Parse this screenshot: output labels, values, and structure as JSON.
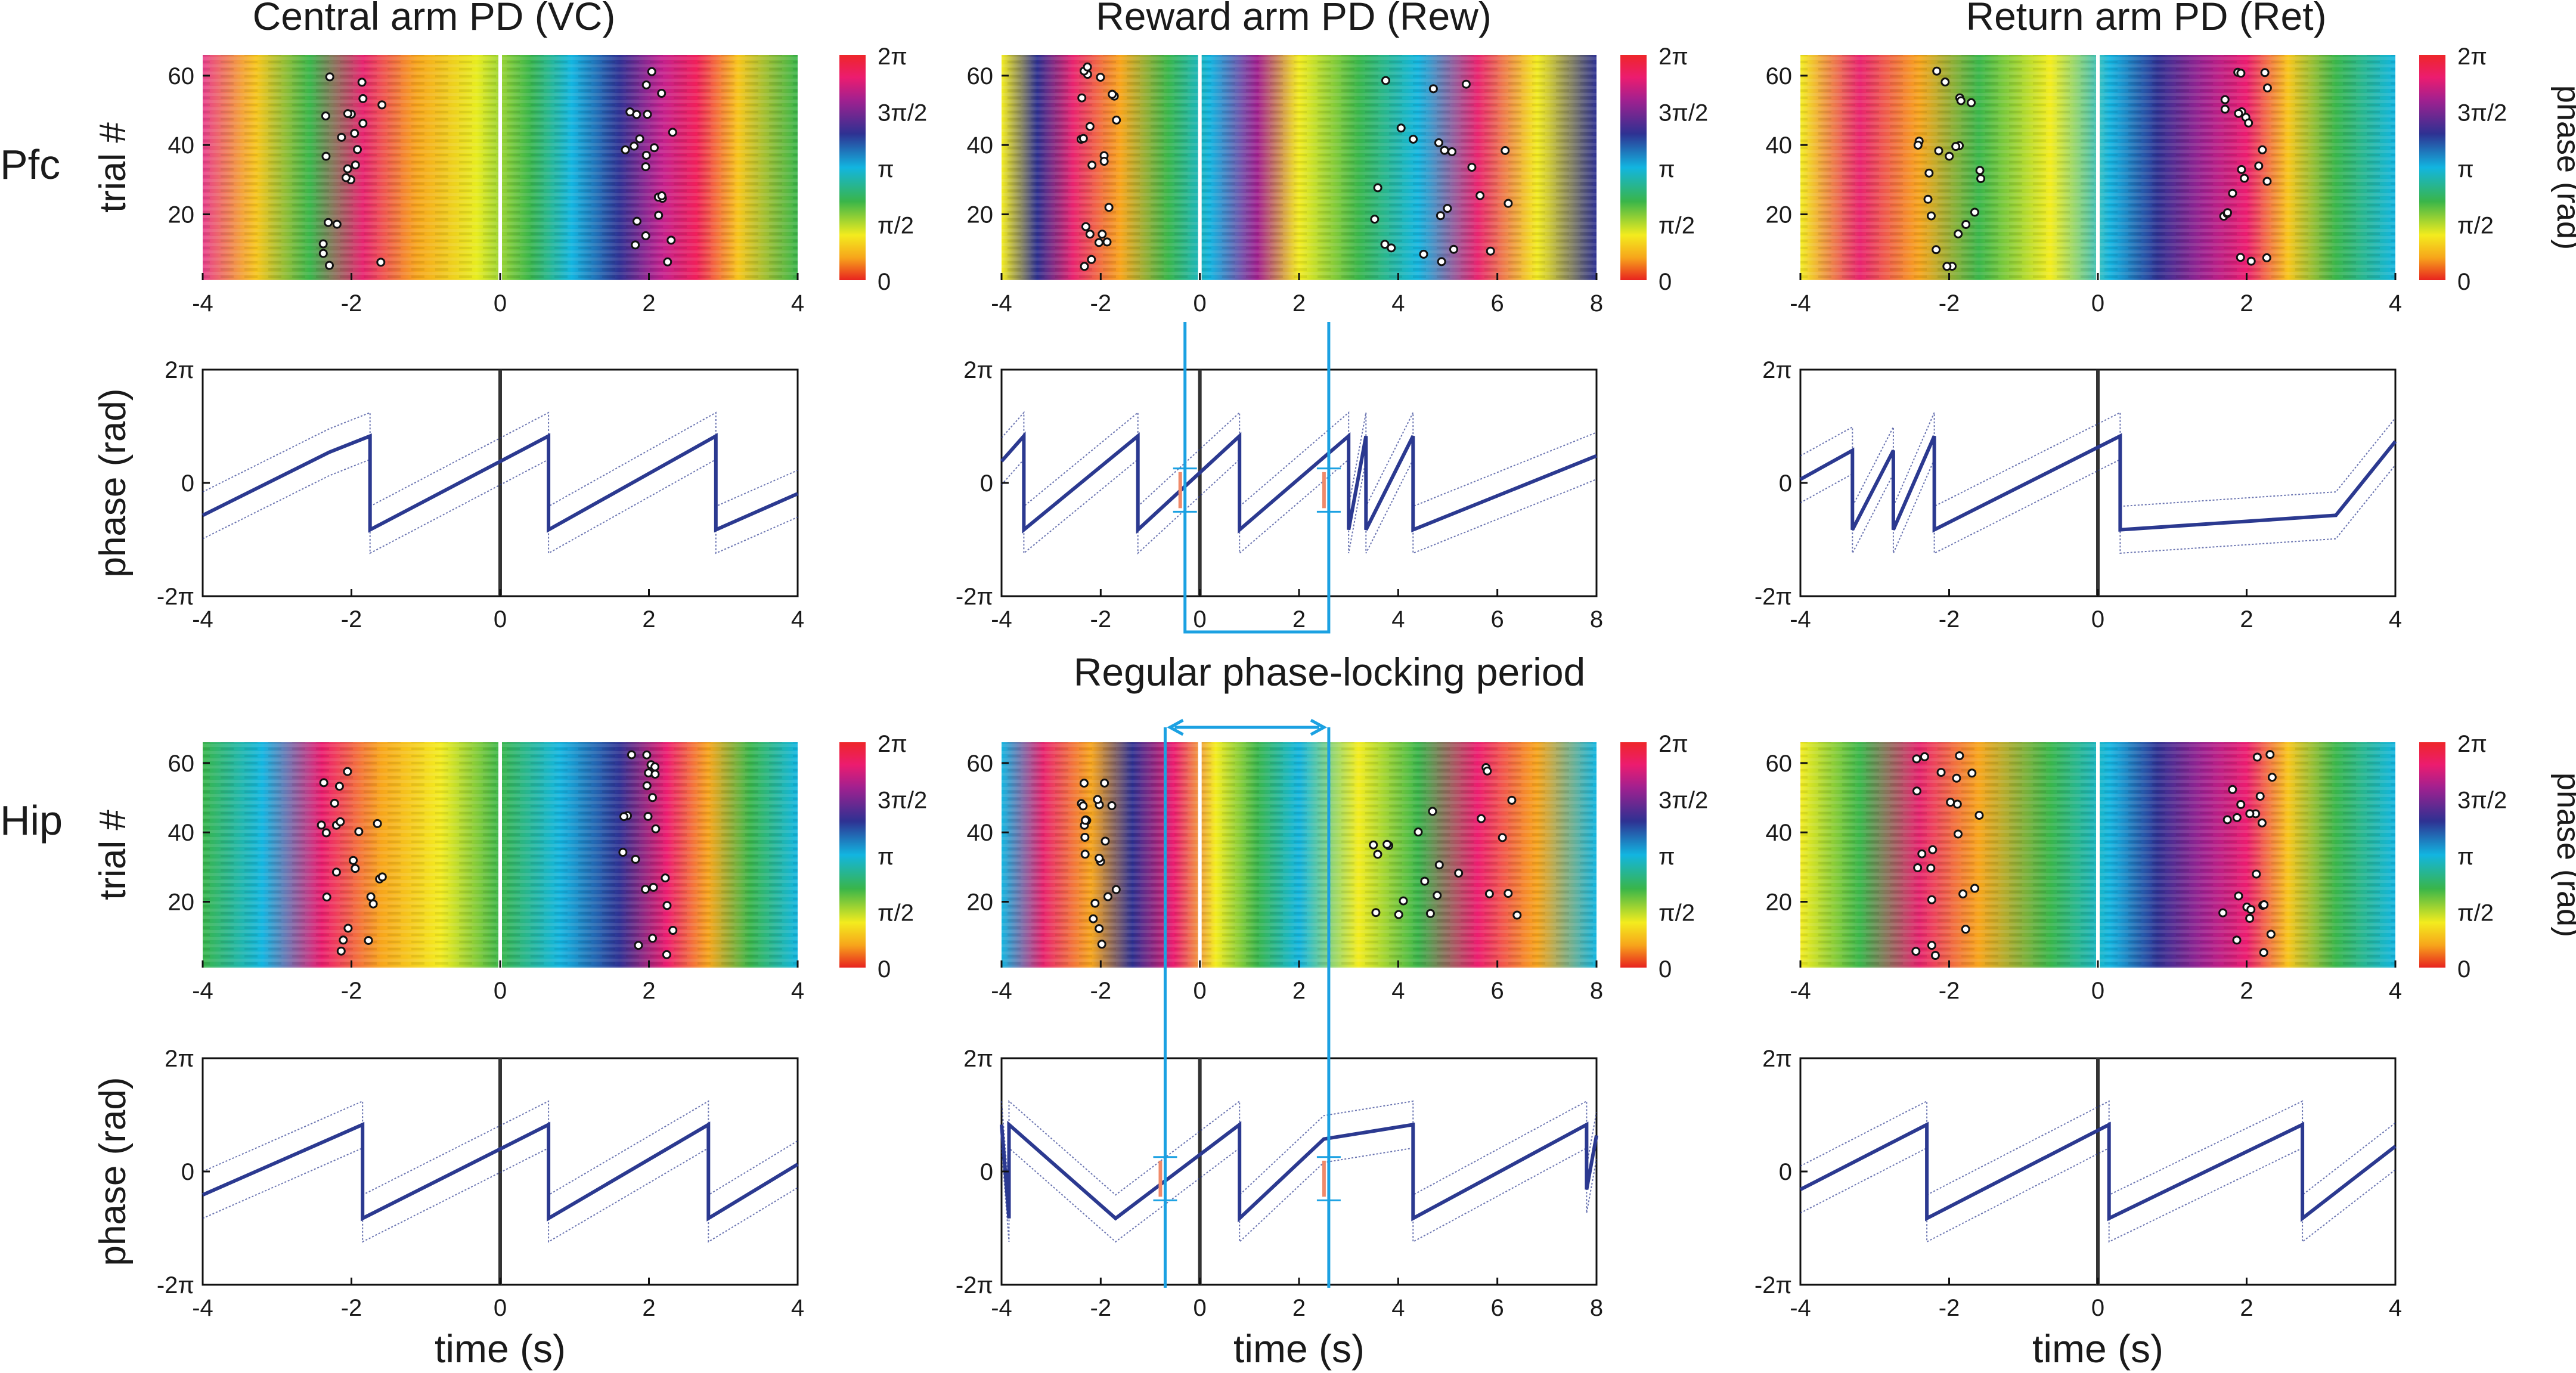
{
  "figure": {
    "columns": [
      {
        "title": "Central arm PD (VC)"
      },
      {
        "title": "Reward arm PD (Rew)"
      },
      {
        "title": "Return arm PD (Ret)"
      }
    ],
    "rows": [
      {
        "label": "Pfc"
      },
      {
        "label": "Hip"
      }
    ],
    "annotation": "Regular phase-locking period",
    "xlabel": "time (s)",
    "ylabel_raster": "trial #",
    "ylabel_phase": "phase (rad)",
    "colorbar_label": "phase (rad)",
    "colorbar_ticks": [
      "2π",
      "3π/2",
      "π",
      "π/2",
      "0"
    ],
    "phase_ticks": [
      "2π",
      "0",
      "-2π"
    ],
    "colors": {
      "accent": "#1ba1e2",
      "trace": "#2b3990",
      "arrow": "#f08a6a",
      "onset": "#333333"
    }
  },
  "chart_data": [
    {
      "type": "heatmap",
      "title": "Central arm PD (VC)",
      "row": "Pfc",
      "xlim": [
        -4,
        4
      ],
      "xticks": [
        "-4",
        "-2",
        "0",
        "2",
        "4"
      ],
      "ylim": [
        1,
        66
      ],
      "yticks": [
        "20",
        "40",
        "60"
      ],
      "ylabel": "trial #",
      "clim": [
        0,
        6.283
      ],
      "colorbar": "phase (rad)"
    },
    {
      "type": "heatmap",
      "title": "Reward arm PD (Rew)",
      "row": "Pfc",
      "xlim": [
        -4,
        8
      ],
      "xticks": [
        "-4",
        "-2",
        "0",
        "2",
        "4",
        "6",
        "8"
      ],
      "ylim": [
        1,
        66
      ],
      "yticks": [
        "20",
        "40",
        "60"
      ],
      "ylabel": "trial #",
      "clim": [
        0,
        6.283
      ],
      "colorbar": "phase (rad)"
    },
    {
      "type": "heatmap",
      "title": "Return arm PD (Ret)",
      "row": "Pfc",
      "xlim": [
        -4,
        4
      ],
      "xticks": [
        "-4",
        "-2",
        "0",
        "2",
        "4"
      ],
      "ylim": [
        1,
        66
      ],
      "yticks": [
        "20",
        "40",
        "60"
      ],
      "ylabel": "trial #",
      "clim": [
        0,
        6.283
      ],
      "colorbar": "phase (rad)"
    },
    {
      "type": "line",
      "row": "Pfc",
      "column": "VC",
      "xlim": [
        -4,
        4
      ],
      "xticks": [
        "-4",
        "-2",
        "0",
        "2",
        "4"
      ],
      "ylim": [
        -6.283,
        6.283
      ],
      "ylabel": "phase (rad)",
      "onset": 0,
      "series": [
        {
          "name": "mean phase",
          "x": [
            -4,
            -2.3,
            -1.75,
            -1.75,
            0.65,
            0.65,
            2.9,
            2.9,
            4
          ],
          "y": [
            -1.8,
            1.7,
            2.6,
            -2.6,
            2.6,
            -2.6,
            2.6,
            -2.6,
            -0.6
          ]
        }
      ]
    },
    {
      "type": "line",
      "row": "Pfc",
      "column": "Rew",
      "xlim": [
        -4,
        8
      ],
      "xticks": [
        "-4",
        "-2",
        "0",
        "2",
        "4",
        "6",
        "8"
      ],
      "ylim": [
        -6.283,
        6.283
      ],
      "ylabel": "phase (rad)",
      "onset": 0,
      "phase_lock_window": [
        -0.3,
        2.6
      ],
      "series": [
        {
          "name": "mean phase",
          "x": [
            -4,
            -3.55,
            -3.55,
            -1.25,
            -1.25,
            0.8,
            0.8,
            3.0,
            3.0,
            3.35,
            3.35,
            4.3,
            4.3,
            8
          ],
          "y": [
            1.2,
            2.6,
            -2.6,
            2.6,
            -2.6,
            2.6,
            -2.6,
            2.6,
            -2.6,
            2.6,
            -2.6,
            2.6,
            -2.6,
            1.5
          ]
        }
      ]
    },
    {
      "type": "line",
      "row": "Pfc",
      "column": "Ret",
      "xlim": [
        -4,
        4
      ],
      "xticks": [
        "-4",
        "-2",
        "0",
        "2",
        "4"
      ],
      "ylim": [
        -6.283,
        6.283
      ],
      "ylabel": "phase (rad)",
      "onset": 0,
      "series": [
        {
          "name": "mean phase",
          "x": [
            -4,
            -3.3,
            -3.3,
            -2.75,
            -2.75,
            -2.2,
            -2.2,
            0.3,
            0.3,
            3.2,
            3.2,
            4
          ],
          "y": [
            0.2,
            1.8,
            -2.6,
            1.8,
            -2.6,
            2.6,
            -2.6,
            2.6,
            -2.6,
            -1.8,
            -1.8,
            2.3
          ]
        }
      ]
    },
    {
      "type": "heatmap",
      "title": "",
      "row": "Hip",
      "column": "VC",
      "xlim": [
        -4,
        4
      ],
      "xticks": [
        "-4",
        "-2",
        "0",
        "2",
        "4"
      ],
      "ylim": [
        1,
        66
      ],
      "yticks": [
        "20",
        "40",
        "60"
      ],
      "ylabel": "trial #",
      "clim": [
        0,
        6.283
      ],
      "colorbar": "phase (rad)"
    },
    {
      "type": "heatmap",
      "title": "",
      "row": "Hip",
      "column": "Rew",
      "xlim": [
        -4,
        8
      ],
      "xticks": [
        "-4",
        "-2",
        "0",
        "2",
        "4",
        "6",
        "8"
      ],
      "ylim": [
        1,
        66
      ],
      "yticks": [
        "20",
        "40",
        "60"
      ],
      "ylabel": "trial #",
      "clim": [
        0,
        6.283
      ],
      "colorbar": "phase (rad)"
    },
    {
      "type": "heatmap",
      "title": "",
      "row": "Hip",
      "column": "Ret",
      "xlim": [
        -4,
        4
      ],
      "xticks": [
        "-4",
        "-2",
        "0",
        "2",
        "4"
      ],
      "ylim": [
        1,
        66
      ],
      "yticks": [
        "20",
        "40",
        "60"
      ],
      "ylabel": "trial #",
      "clim": [
        0,
        6.283
      ],
      "colorbar": "phase (rad)"
    },
    {
      "type": "line",
      "row": "Hip",
      "column": "VC",
      "xlim": [
        -4,
        4
      ],
      "xticks": [
        "-4",
        "-2",
        "0",
        "2",
        "4"
      ],
      "ylim": [
        -6.283,
        6.283
      ],
      "ylabel": "phase (rad)",
      "xlabel": "time (s)",
      "onset": 0,
      "series": [
        {
          "name": "mean phase",
          "x": [
            -4,
            -1.85,
            -1.85,
            0.65,
            0.65,
            2.8,
            2.8,
            4
          ],
          "y": [
            -1.3,
            2.6,
            -2.6,
            2.6,
            -2.6,
            2.6,
            -2.6,
            0.4
          ]
        }
      ]
    },
    {
      "type": "line",
      "row": "Hip",
      "column": "Rew",
      "xlim": [
        -4,
        8
      ],
      "xticks": [
        "-4",
        "-2",
        "0",
        "2",
        "4",
        "6",
        "8"
      ],
      "ylim": [
        -6.283,
        6.283
      ],
      "ylabel": "phase (rad)",
      "xlabel": "time (s)",
      "onset": 0,
      "phase_lock_window": [
        -0.7,
        2.6
      ],
      "series": [
        {
          "name": "mean phase",
          "x": [
            -4,
            -3.85,
            -3.85,
            -1.7,
            -1.7,
            0.8,
            0.8,
            2.5,
            2.5,
            4.3,
            4.3,
            7.8,
            7.8,
            8
          ],
          "y": [
            2.6,
            -2.6,
            2.6,
            -2.6,
            -2.6,
            2.6,
            -2.6,
            1.8,
            1.8,
            2.6,
            -2.6,
            2.6,
            -1.0,
            2.0
          ]
        }
      ]
    },
    {
      "type": "line",
      "row": "Hip",
      "column": "Ret",
      "xlim": [
        -4,
        4
      ],
      "xticks": [
        "-4",
        "-2",
        "0",
        "2",
        "4"
      ],
      "ylim": [
        -6.283,
        6.283
      ],
      "ylabel": "phase (rad)",
      "xlabel": "time (s)",
      "onset": 0,
      "series": [
        {
          "name": "mean phase",
          "x": [
            -4,
            -2.3,
            -2.3,
            0.15,
            0.15,
            2.75,
            2.75,
            4
          ],
          "y": [
            -1.0,
            2.6,
            -2.6,
            2.6,
            -2.6,
            2.6,
            -2.6,
            1.4
          ]
        }
      ]
    }
  ]
}
